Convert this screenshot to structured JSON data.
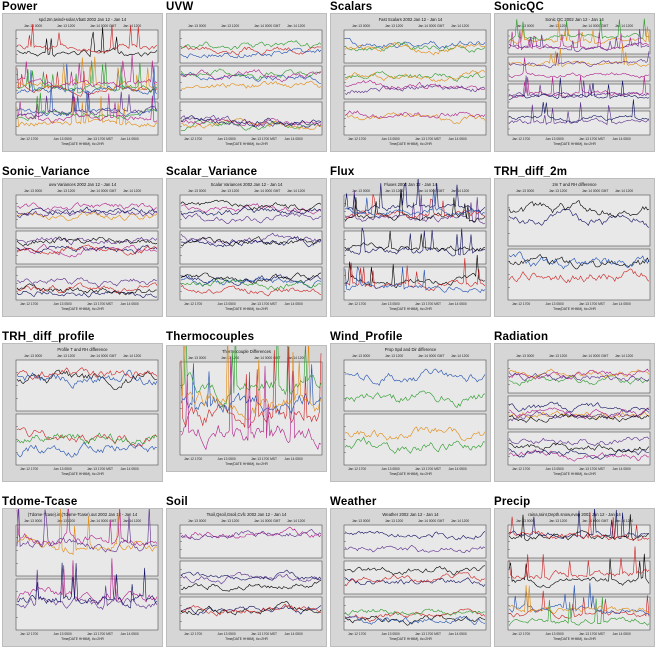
{
  "panels": [
    {
      "name": "Power",
      "subtitle": "spd.2m,twind+solar,Vbatt 2002 Jan 12 - Jan 14",
      "nplots": 3
    },
    {
      "name": "UVW",
      "subtitle": "",
      "nplots": 3
    },
    {
      "name": "Scalars",
      "subtitle": "Fast Scalars 2002 Jan 12 - Jan 14",
      "nplots": 3
    },
    {
      "name": "SonicQC",
      "subtitle": "Sonic QC 2002 Jan 12 - Jan 14",
      "nplots": 4
    },
    {
      "name": "Sonic_Variance",
      "subtitle": "uvw Variances 2002 Jan 12 - Jan 14",
      "nplots": 3
    },
    {
      "name": "Scalar_Variance",
      "subtitle": "Scalar Variances 2002 Jan 12 - Jan 14",
      "nplots": 3
    },
    {
      "name": "Flux",
      "subtitle": "Fluxes 2002 Jan 12 - Jan 14",
      "nplots": 3
    },
    {
      "name": "TRH_diff_2m",
      "subtitle": "2m T and RH difference",
      "nplots": 2
    },
    {
      "name": "TRH_diff_profile",
      "subtitle": "Profile T and RH difference",
      "nplots": 2
    },
    {
      "name": "Thermocouples",
      "subtitle": "Thermocouple Differences",
      "nplots": 1
    },
    {
      "name": "Wind_Profile",
      "subtitle": "Prop Spd and Dir difference",
      "nplots": 2
    },
    {
      "name": "Radiation",
      "subtitle": "",
      "nplots": 3
    },
    {
      "name": "Tdome-Tcase",
      "subtitle": "(Tdome-Tcase).in,(Tdome-Tcase).out 2002 Jan 12 - Jan 14",
      "nplots": 2
    },
    {
      "name": "Soil",
      "subtitle": "Tsoil,Qsoil,Gsoil,Cvfc 2002 Jan 12 - Jan 14",
      "nplots": 3
    },
    {
      "name": "Weather",
      "subtitle": "Weather 2002 Jan 12 - Jan 14",
      "nplots": 3
    },
    {
      "name": "Precip",
      "subtitle": "raina,rainr,Depth.snow,evap 2002 Jan 12 - Jan 14",
      "nplots": 3
    }
  ],
  "axis_top": [
    "Jan 13 0000",
    "Jan 13 1200",
    "Jan 14 0000 GMT",
    "Jan 14 1200"
  ],
  "axis_bottom": [
    "Jan 12 1700",
    "Jan 13 0500",
    "Jan 13 1700 MST",
    "Jan 14 0500"
  ],
  "axis_caption": "Time(DATE HHMM), tic=2HR",
  "colors": {
    "black": "#000000",
    "red": "#cc2222",
    "blue": "#1f4fb0",
    "green": "#2a9a2a",
    "orange": "#e08a10",
    "magenta": "#b0208a",
    "purple": "#5a2a8a",
    "navy": "#101060",
    "panel_bg": "#d6d6d6",
    "plot_bg": "#e8e8e8"
  }
}
